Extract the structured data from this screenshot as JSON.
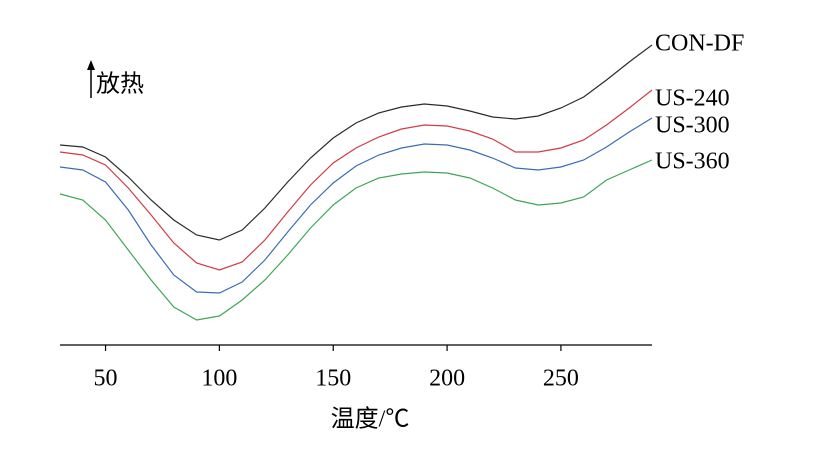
{
  "chart_data": {
    "type": "line",
    "xlabel": "温度/℃",
    "annotation": "放热",
    "x": [
      30,
      40,
      50,
      60,
      70,
      80,
      90,
      100,
      110,
      120,
      130,
      140,
      150,
      160,
      170,
      180,
      190,
      200,
      210,
      220,
      230,
      240,
      250,
      260,
      270,
      280,
      290
    ],
    "series": [
      {
        "name": "CON-DF",
        "color": "#2b2b2b",
        "values": [
          20.0,
          19.8,
          18.8,
          16.8,
          14.5,
          12.5,
          11.0,
          10.5,
          11.5,
          13.7,
          16.3,
          18.7,
          20.7,
          22.2,
          23.2,
          23.8,
          24.1,
          23.9,
          23.4,
          22.8,
          22.6,
          22.9,
          23.7,
          24.8,
          26.5,
          28.3,
          30.0
        ]
      },
      {
        "name": "US-240",
        "color": "#d23a44",
        "values": [
          19.3,
          19.0,
          18.0,
          15.7,
          13.0,
          10.2,
          8.2,
          7.5,
          8.3,
          10.5,
          13.3,
          16.0,
          18.2,
          19.7,
          20.8,
          21.6,
          22.0,
          21.9,
          21.4,
          20.6,
          19.3,
          19.3,
          19.7,
          20.5,
          22.0,
          23.7,
          25.5
        ]
      },
      {
        "name": "US-300",
        "color": "#3b6db3",
        "values": [
          17.8,
          17.5,
          16.3,
          13.5,
          10.0,
          7.0,
          5.3,
          5.2,
          6.3,
          8.5,
          11.3,
          14.0,
          16.2,
          17.9,
          19.0,
          19.7,
          20.1,
          20.0,
          19.5,
          18.7,
          17.7,
          17.5,
          17.8,
          18.5,
          19.8,
          21.3,
          22.7
        ]
      },
      {
        "name": "US-360",
        "color": "#3fa657",
        "values": [
          15.1,
          14.5,
          12.5,
          9.5,
          6.5,
          3.8,
          2.5,
          2.9,
          4.5,
          6.5,
          9.0,
          11.7,
          14.0,
          15.7,
          16.7,
          17.1,
          17.3,
          17.2,
          16.7,
          15.7,
          14.5,
          14.0,
          14.2,
          14.8,
          16.5,
          17.5,
          18.5
        ]
      }
    ],
    "xlim": [
      30,
      290
    ],
    "xticks": [
      50,
      100,
      150,
      200,
      250
    ],
    "ylim": [
      0,
      30
    ]
  }
}
